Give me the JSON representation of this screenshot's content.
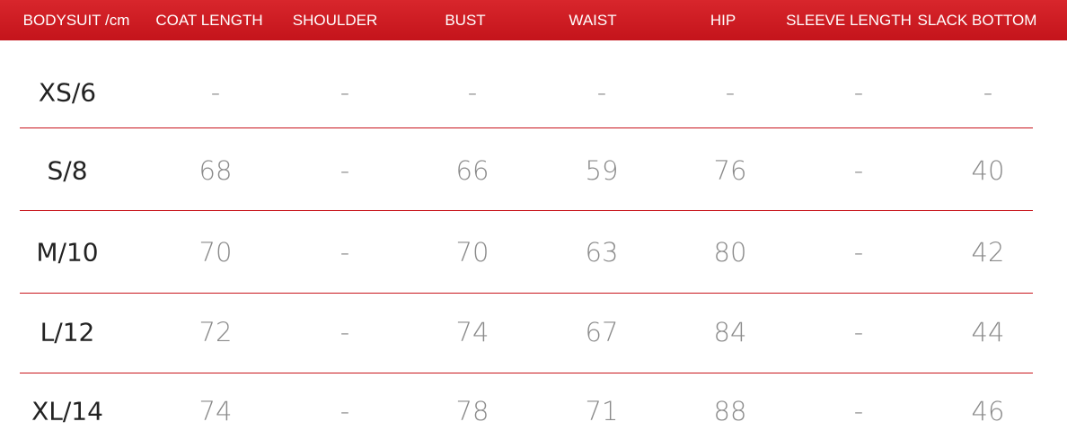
{
  "table": {
    "header": [
      "BODYSUIT /cm",
      "COAT LENGTH",
      "SHOULDER",
      "BUST",
      "WAIST",
      "HIP",
      "SLEEVE LENGTH",
      "SLACK BOTTOM"
    ],
    "rows": [
      [
        "XS/6",
        "-",
        "-",
        "-",
        "-",
        "-",
        "-",
        "-"
      ],
      [
        "S/8",
        68,
        "-",
        66,
        59,
        76,
        "-",
        40
      ],
      [
        "M/10",
        70,
        "-",
        70,
        63,
        80,
        "-",
        42
      ],
      [
        "L/12",
        72,
        "-",
        74,
        67,
        84,
        "-",
        44
      ],
      [
        "XL/14",
        74,
        "-",
        78,
        71,
        88,
        "-",
        46
      ]
    ]
  }
}
